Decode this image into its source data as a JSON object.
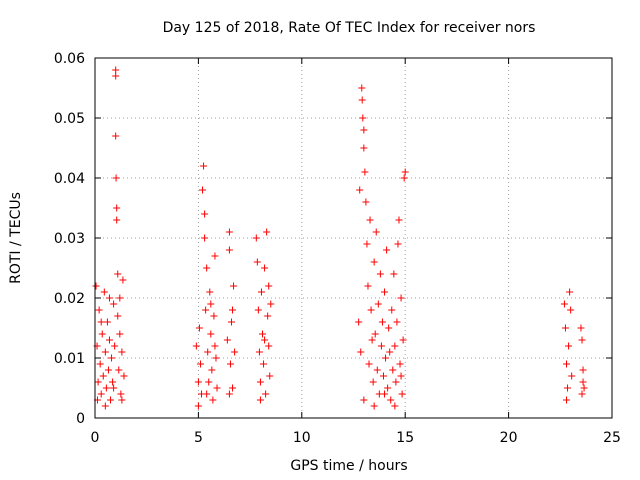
{
  "chart_data": {
    "type": "scatter",
    "title": "Day 125 of 2018, Rate Of TEC Index for receiver nors",
    "xlabel": "GPS time / hours",
    "ylabel": "ROTI / TECUs",
    "xlim": [
      0,
      25
    ],
    "ylim": [
      0,
      0.06
    ],
    "x_ticks": [
      0,
      5,
      10,
      15,
      20,
      25
    ],
    "x_tick_labels": [
      "0",
      "5",
      "10",
      "15",
      "20",
      "25"
    ],
    "y_ticks": [
      0,
      0.01,
      0.02,
      0.03,
      0.04,
      0.05,
      0.06
    ],
    "y_tick_labels": [
      "0",
      "0.01",
      "0.02",
      "0.03",
      "0.04",
      "0.05",
      "0.06"
    ],
    "grid": true,
    "legend": "none",
    "marker": "+",
    "color": "#ff0000",
    "series": [
      {
        "points": [
          [
            0.05,
            0.022
          ],
          [
            0.1,
            0.012
          ],
          [
            0.15,
            0.006
          ],
          [
            0.2,
            0.018
          ],
          [
            0.25,
            0.009
          ],
          [
            0.3,
            0.004
          ],
          [
            0.35,
            0.014
          ],
          [
            0.4,
            0.007
          ],
          [
            0.45,
            0.021
          ],
          [
            0.5,
            0.011
          ],
          [
            0.55,
            0.005
          ],
          [
            0.6,
            0.016
          ],
          [
            0.65,
            0.008
          ],
          [
            0.7,
            0.013
          ],
          [
            0.75,
            0.003
          ],
          [
            0.8,
            0.01
          ],
          [
            0.85,
            0.006
          ],
          [
            0.9,
            0.019
          ],
          [
            0.95,
            0.012
          ],
          [
            1.0,
            0.058
          ],
          [
            1.0,
            0.057
          ],
          [
            1.0,
            0.047
          ],
          [
            1.02,
            0.04
          ],
          [
            1.05,
            0.035
          ],
          [
            1.05,
            0.033
          ],
          [
            1.1,
            0.024
          ],
          [
            1.1,
            0.017
          ],
          [
            1.15,
            0.008
          ],
          [
            1.2,
            0.014
          ],
          [
            1.25,
            0.004
          ],
          [
            1.3,
            0.011
          ],
          [
            1.35,
            0.023
          ],
          [
            1.4,
            0.007
          ],
          [
            0.12,
            0.003
          ],
          [
            0.3,
            0.016
          ],
          [
            0.5,
            0.002
          ],
          [
            0.7,
            0.02
          ],
          [
            0.9,
            0.005
          ],
          [
            1.2,
            0.02
          ],
          [
            1.3,
            0.003
          ],
          [
            4.9,
            0.012
          ],
          [
            5.0,
            0.006
          ],
          [
            5.05,
            0.015
          ],
          [
            5.1,
            0.009
          ],
          [
            5.15,
            0.004
          ],
          [
            5.2,
            0.038
          ],
          [
            5.25,
            0.042
          ],
          [
            5.3,
            0.034
          ],
          [
            5.3,
            0.03
          ],
          [
            5.35,
            0.018
          ],
          [
            5.4,
            0.025
          ],
          [
            5.45,
            0.011
          ],
          [
            5.5,
            0.006
          ],
          [
            5.55,
            0.021
          ],
          [
            5.6,
            0.014
          ],
          [
            5.65,
            0.008
          ],
          [
            5.7,
            0.003
          ],
          [
            5.75,
            0.017
          ],
          [
            5.8,
            0.027
          ],
          [
            5.85,
            0.01
          ],
          [
            5.9,
            0.005
          ],
          [
            5.0,
            0.002
          ],
          [
            5.4,
            0.004
          ],
          [
            5.6,
            0.019
          ],
          [
            5.8,
            0.012
          ],
          [
            6.4,
            0.013
          ],
          [
            6.5,
            0.031
          ],
          [
            6.5,
            0.028
          ],
          [
            6.55,
            0.009
          ],
          [
            6.6,
            0.016
          ],
          [
            6.65,
            0.005
          ],
          [
            6.7,
            0.022
          ],
          [
            6.75,
            0.011
          ],
          [
            6.5,
            0.004
          ],
          [
            6.65,
            0.018
          ],
          [
            7.8,
            0.03
          ],
          [
            7.85,
            0.026
          ],
          [
            7.9,
            0.018
          ],
          [
            7.95,
            0.011
          ],
          [
            8.0,
            0.006
          ],
          [
            8.05,
            0.021
          ],
          [
            8.1,
            0.014
          ],
          [
            8.15,
            0.009
          ],
          [
            8.2,
            0.025
          ],
          [
            8.25,
            0.004
          ],
          [
            8.3,
            0.031
          ],
          [
            8.35,
            0.017
          ],
          [
            8.4,
            0.012
          ],
          [
            8.45,
            0.007
          ],
          [
            8.5,
            0.019
          ],
          [
            8.0,
            0.003
          ],
          [
            8.2,
            0.013
          ],
          [
            8.4,
            0.022
          ],
          [
            12.75,
            0.016
          ],
          [
            12.8,
            0.038
          ],
          [
            12.85,
            0.011
          ],
          [
            12.9,
            0.055
          ],
          [
            12.92,
            0.053
          ],
          [
            12.95,
            0.05
          ],
          [
            13.0,
            0.045
          ],
          [
            13.0,
            0.048
          ],
          [
            13.05,
            0.041
          ],
          [
            13.1,
            0.036
          ],
          [
            13.15,
            0.029
          ],
          [
            13.2,
            0.022
          ],
          [
            13.25,
            0.009
          ],
          [
            13.3,
            0.033
          ],
          [
            13.35,
            0.018
          ],
          [
            13.4,
            0.013
          ],
          [
            13.45,
            0.006
          ],
          [
            13.5,
            0.026
          ],
          [
            13.55,
            0.014
          ],
          [
            13.6,
            0.031
          ],
          [
            13.65,
            0.008
          ],
          [
            13.7,
            0.019
          ],
          [
            13.75,
            0.004
          ],
          [
            13.8,
            0.024
          ],
          [
            13.85,
            0.012
          ],
          [
            13.9,
            0.016
          ],
          [
            13.95,
            0.007
          ],
          [
            14.0,
            0.021
          ],
          [
            14.05,
            0.01
          ],
          [
            14.1,
            0.028
          ],
          [
            14.15,
            0.005
          ],
          [
            14.2,
            0.015
          ],
          [
            14.25,
            0.011
          ],
          [
            14.3,
            0.003
          ],
          [
            14.35,
            0.018
          ],
          [
            14.4,
            0.008
          ],
          [
            14.45,
            0.024
          ],
          [
            14.5,
            0.012
          ],
          [
            14.55,
            0.006
          ],
          [
            14.6,
            0.016
          ],
          [
            14.65,
            0.029
          ],
          [
            14.7,
            0.033
          ],
          [
            14.75,
            0.009
          ],
          [
            14.8,
            0.02
          ],
          [
            14.85,
            0.004
          ],
          [
            14.9,
            0.013
          ],
          [
            14.95,
            0.04
          ],
          [
            15.0,
            0.041
          ],
          [
            13.0,
            0.003
          ],
          [
            13.5,
            0.002
          ],
          [
            14.0,
            0.004
          ],
          [
            14.5,
            0.002
          ],
          [
            14.8,
            0.007
          ],
          [
            22.7,
            0.019
          ],
          [
            22.75,
            0.015
          ],
          [
            22.8,
            0.009
          ],
          [
            22.85,
            0.005
          ],
          [
            22.9,
            0.012
          ],
          [
            22.95,
            0.021
          ],
          [
            23.0,
            0.018
          ],
          [
            23.05,
            0.007
          ],
          [
            22.8,
            0.003
          ],
          [
            23.5,
            0.015
          ],
          [
            23.55,
            0.013
          ],
          [
            23.6,
            0.008
          ],
          [
            23.65,
            0.005
          ],
          [
            23.6,
            0.006
          ],
          [
            23.55,
            0.004
          ]
        ]
      }
    ]
  }
}
